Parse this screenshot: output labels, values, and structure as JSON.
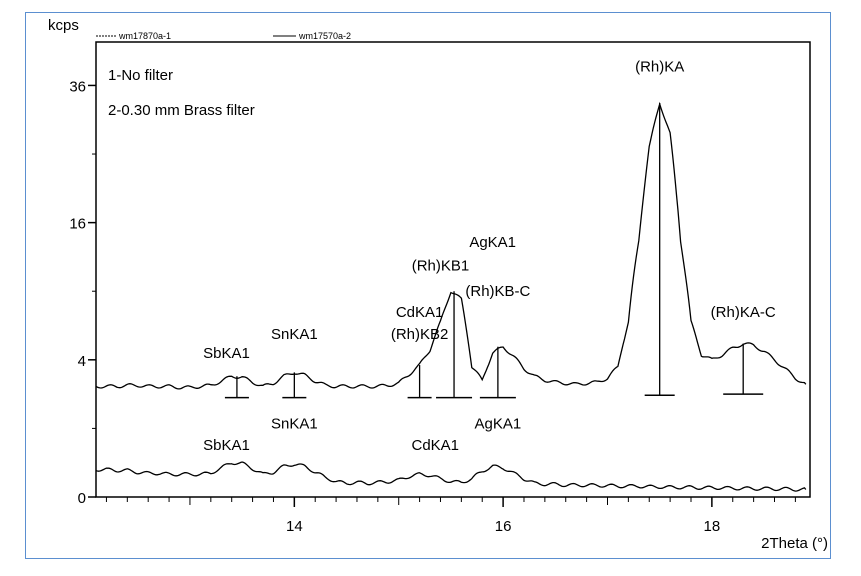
{
  "chart_data": {
    "type": "line",
    "ylabel": "kcps",
    "xlabel": "2Theta (°)",
    "xlim": [
      12.1,
      18.94
    ],
    "ylim": [
      0,
      44
    ],
    "yscale": "sqrt",
    "xticks": [
      14,
      16,
      18
    ],
    "xtick_labels": [
      "14",
      "16",
      "18"
    ],
    "yticks": [
      0,
      4,
      16,
      36
    ],
    "ytick_labels": [
      "0",
      "4",
      "16",
      "36"
    ],
    "grid": false,
    "legend": {
      "placement": "top",
      "entries": [
        "wm17870a-1",
        "wm17570a-2"
      ]
    },
    "notes": [
      "1-No filter",
      "2-0.30 mm Brass filter"
    ],
    "x": [
      12.1,
      12.2,
      12.3,
      12.4,
      12.5,
      12.6,
      12.7,
      12.8,
      12.9,
      13.0,
      13.1,
      13.2,
      13.3,
      13.4,
      13.5,
      13.6,
      13.7,
      13.8,
      13.9,
      14.0,
      14.1,
      14.2,
      14.3,
      14.4,
      14.5,
      14.6,
      14.7,
      14.8,
      14.9,
      15.0,
      15.1,
      15.2,
      15.3,
      15.4,
      15.5,
      15.6,
      15.7,
      15.8,
      15.9,
      16.0,
      16.1,
      16.2,
      16.3,
      16.4,
      16.5,
      16.6,
      16.7,
      16.8,
      16.9,
      17.0,
      17.1,
      17.2,
      17.3,
      17.4,
      17.5,
      17.6,
      17.7,
      17.8,
      17.9,
      18.0,
      18.1,
      18.2,
      18.3,
      18.4,
      18.5,
      18.6,
      18.7,
      18.8,
      18.9
    ],
    "series": [
      {
        "name": "wm17870a-1",
        "color": "#000000",
        "values": [
          2.6,
          2.6,
          2.6,
          2.65,
          2.65,
          2.6,
          2.6,
          2.6,
          2.55,
          2.55,
          2.6,
          2.65,
          2.85,
          3.1,
          3.05,
          2.8,
          2.6,
          2.75,
          3.1,
          3.3,
          3.15,
          2.85,
          2.65,
          2.6,
          2.6,
          2.6,
          2.6,
          2.6,
          2.65,
          2.75,
          3.2,
          3.7,
          4.6,
          6.5,
          9.0,
          8.3,
          3.6,
          2.9,
          4.4,
          4.8,
          4.2,
          3.5,
          3.1,
          2.9,
          2.8,
          2.75,
          2.7,
          2.75,
          2.8,
          3.0,
          3.6,
          6.5,
          14,
          26,
          33,
          28,
          14,
          6.5,
          4.3,
          4.0,
          4.3,
          4.7,
          5.0,
          4.9,
          4.5,
          4.0,
          3.5,
          3.0,
          2.7
        ]
      },
      {
        "name": "wm17570a-2",
        "color": "#000000",
        "values": [
          0.16,
          0.16,
          0.15,
          0.15,
          0.13,
          0.12,
          0.12,
          0.11,
          0.11,
          0.11,
          0.11,
          0.12,
          0.18,
          0.25,
          0.24,
          0.17,
          0.11,
          0.13,
          0.2,
          0.23,
          0.2,
          0.13,
          0.08,
          0.05,
          0.04,
          0.045,
          0.04,
          0.045,
          0.05,
          0.06,
          0.09,
          0.11,
          0.1,
          0.07,
          0.05,
          0.045,
          0.07,
          0.14,
          0.2,
          0.18,
          0.12,
          0.07,
          0.04,
          0.035,
          0.035,
          0.03,
          0.03,
          0.03,
          0.028,
          0.028,
          0.025,
          0.025,
          0.025,
          0.022,
          0.022,
          0.02,
          0.02,
          0.02,
          0.018,
          0.018,
          0.018,
          0.016,
          0.016,
          0.015,
          0.015,
          0.014,
          0.014,
          0.012,
          0.012
        ]
      }
    ],
    "markers": [
      {
        "x": 13.45,
        "top": 3.1,
        "base": 2.1
      },
      {
        "x": 14.0,
        "top": 3.3,
        "base": 2.1
      },
      {
        "x": 15.2,
        "top": 3.7,
        "base": 2.1
      },
      {
        "x": 15.53,
        "top": 9.0,
        "base": 2.1
      },
      {
        "x": 15.95,
        "top": 4.8,
        "base": 2.1
      },
      {
        "x": 17.5,
        "top": 33,
        "base": 2.2
      },
      {
        "x": 18.3,
        "top": 5.0,
        "base": 2.25
      }
    ],
    "annotations": [
      {
        "text": "SbKA1",
        "x": 13.35,
        "y": 4.1
      },
      {
        "text": "SnKA1",
        "x": 14.0,
        "y": 5.3
      },
      {
        "text": "CdKA1",
        "x": 15.2,
        "y": 6.9
      },
      {
        "text": "(Rh)KB2",
        "x": 15.2,
        "y": 5.3
      },
      {
        "text": "(Rh)KB1",
        "x": 15.4,
        "y": 10.9
      },
      {
        "text": "AgKA1",
        "x": 15.9,
        "y": 13.3
      },
      {
        "text": "(Rh)KB-C",
        "x": 15.95,
        "y": 8.6
      },
      {
        "text": "(Rh)KA",
        "x": 17.5,
        "y": 38.5
      },
      {
        "text": "(Rh)KA-C",
        "x": 18.3,
        "y": 6.9
      },
      {
        "text": "SbKA1",
        "x": 13.35,
        "y": 0.47
      },
      {
        "text": "SnKA1",
        "x": 14.0,
        "y": 1.0
      },
      {
        "text": "CdKA1",
        "x": 15.35,
        "y": 0.47
      },
      {
        "text": "AgKA1",
        "x": 15.95,
        "y": 1.0
      }
    ]
  }
}
